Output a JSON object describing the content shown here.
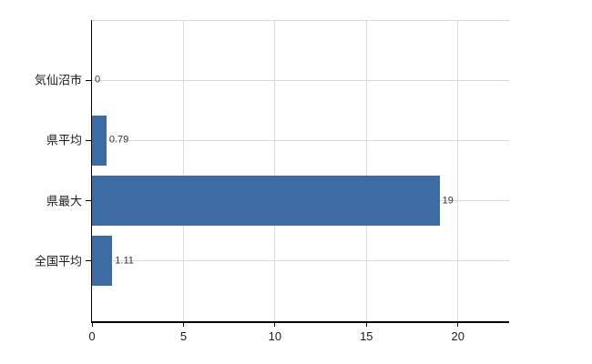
{
  "chart_data": {
    "type": "bar",
    "orientation": "horizontal",
    "title": "",
    "categories": [
      "気仙沼市",
      "県平均",
      "県最大",
      "全国平均"
    ],
    "values": [
      0,
      0.79,
      19,
      1.11
    ],
    "value_labels": [
      "0",
      "0.79",
      "19",
      "1.11"
    ],
    "x_ticks": [
      0,
      5,
      10,
      15,
      20
    ],
    "x_tick_labels": [
      "0",
      "5",
      "10",
      "15",
      "20"
    ],
    "xlim": [
      0,
      22.8
    ],
    "grid": true,
    "legend": false,
    "colors": {
      "bar": "#3d6ca5",
      "gridline": "#d9d9d9",
      "axis": "#000000",
      "tick_label": "#1a1a1a",
      "value_label": "#333333",
      "background": "#ffffff"
    }
  }
}
